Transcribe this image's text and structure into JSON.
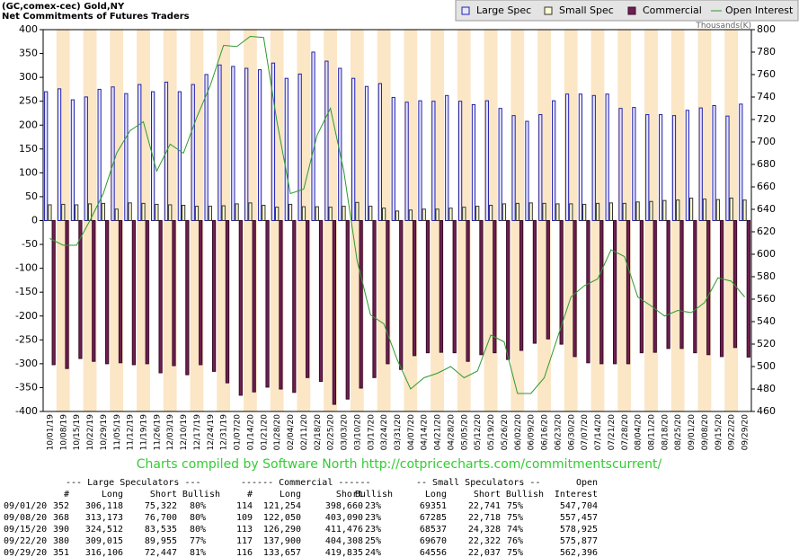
{
  "chart_data": {
    "type": "bar",
    "title": "(GC,comex-cec) Gold,NY",
    "subtitle": "Net Commitments of Futures Traders",
    "y2label": "Thousands(K)",
    "caption": "Charts compiled by Software North  http://cotpricecharts.com/commitmentscurrent/",
    "categories": [
      "10/01/19",
      "10/08/19",
      "10/15/19",
      "10/22/19",
      "10/29/19",
      "11/05/19",
      "11/12/19",
      "11/19/19",
      "11/26/19",
      "12/03/19",
      "12/10/19",
      "12/17/19",
      "12/24/19",
      "12/31/19",
      "01/07/20",
      "01/14/20",
      "01/21/20",
      "01/28/20",
      "02/04/20",
      "02/11/20",
      "02/18/20",
      "02/25/20",
      "03/03/20",
      "03/10/20",
      "03/17/20",
      "03/24/20",
      "03/31/20",
      "04/07/20",
      "04/14/20",
      "04/21/20",
      "04/28/20",
      "05/05/20",
      "05/12/20",
      "05/19/20",
      "05/26/20",
      "06/02/20",
      "06/09/20",
      "06/16/20",
      "06/23/20",
      "06/30/20",
      "07/07/20",
      "07/14/20",
      "07/21/20",
      "07/28/20",
      "08/04/20",
      "08/11/20",
      "08/18/20",
      "08/25/20",
      "09/01/20",
      "09/08/20",
      "09/15/20",
      "09/22/20",
      "09/29/20"
    ],
    "series": [
      {
        "name": "Large Spec",
        "color": "#e6e6ff",
        "edge_color": "#2222aa",
        "values": [
          270,
          276,
          253,
          259,
          275,
          280,
          266,
          285,
          270,
          290,
          270,
          285,
          306,
          326,
          323,
          319,
          316,
          330,
          298,
          307,
          353,
          334,
          319,
          298,
          281,
          287,
          258,
          248,
          251,
          250,
          262,
          250,
          243,
          251,
          235,
          220,
          208,
          222,
          251,
          265,
          265,
          262,
          265,
          235,
          237,
          222,
          222,
          220,
          231,
          236,
          241,
          219,
          244
        ]
      },
      {
        "name": "Small Spec",
        "color": "#ffffd0",
        "edge_color": "#333333",
        "values": [
          33,
          34,
          33,
          35,
          36,
          24,
          37,
          36,
          34,
          33,
          32,
          30,
          30,
          31,
          35,
          37,
          32,
          28,
          34,
          29,
          29,
          28,
          30,
          38,
          30,
          26,
          20,
          22,
          24,
          24,
          26,
          28,
          30,
          32,
          35,
          36,
          37,
          36,
          35,
          35,
          34,
          36,
          37,
          36,
          39,
          40,
          42,
          43,
          47,
          45,
          44,
          47,
          43
        ]
      },
      {
        "name": "Commercial",
        "color": "#6e2050",
        "edge_color": "#3a0a28",
        "values": [
          -302,
          -310,
          -289,
          -295,
          -300,
          -298,
          -302,
          -300,
          -319,
          -304,
          -323,
          -302,
          -316,
          -340,
          -366,
          -359,
          -349,
          -353,
          -360,
          -329,
          -337,
          -385,
          -374,
          -351,
          -329,
          -300,
          -312,
          -283,
          -277,
          -276,
          -277,
          -295,
          -281,
          -277,
          -291,
          -272,
          -257,
          -248,
          -259,
          -285,
          -298,
          -300,
          -300,
          -300,
          -277,
          -276,
          -268,
          -268,
          -277,
          -281,
          -285,
          -266,
          -286
        ]
      },
      {
        "name": "Open Interest",
        "color": "#2e9a2e",
        "type": "line",
        "axis": "y2",
        "values": [
          614,
          608,
          608,
          630,
          654,
          690,
          710,
          718,
          674,
          698,
          690,
          722,
          750,
          786,
          785,
          794,
          793,
          718,
          654,
          658,
          706,
          730,
          674,
          594,
          546,
          538,
          506,
          480,
          490,
          494,
          500,
          490,
          496,
          528,
          522,
          476,
          476,
          490,
          526,
          562,
          572,
          578,
          604,
          598,
          562,
          554,
          545,
          550,
          548,
          557,
          579,
          576,
          562
        ]
      }
    ],
    "ylim": [
      -400,
      400
    ],
    "yticks": [
      -400,
      -350,
      -300,
      -250,
      -200,
      -150,
      -100,
      -50,
      0,
      50,
      100,
      150,
      200,
      250,
      300,
      350,
      400
    ],
    "y2lim": [
      460,
      800
    ],
    "y2ticks": [
      460,
      480,
      500,
      520,
      540,
      560,
      580,
      600,
      620,
      640,
      660,
      680,
      700,
      720,
      740,
      760,
      780,
      800
    ],
    "band_colors": [
      "#ffffff",
      "#fbe6c6"
    ],
    "legend": "top-right"
  },
  "table": {
    "groups": [
      "--- Large Speculators ---",
      "------ Commercial ------",
      "-- Small Speculators --",
      "Open"
    ],
    "columns": [
      "#",
      "Long",
      "Short",
      "Bullish",
      "#",
      "Long",
      "Short",
      "Bullish",
      "Long",
      "Short",
      "Bullish",
      "Interest"
    ],
    "rows": [
      [
        "09/01/20",
        "352",
        "306,118",
        "75,322",
        "80%",
        "114",
        "121,254",
        "398,660",
        "23%",
        "69351",
        "22,741",
        "75%",
        "547,704"
      ],
      [
        "09/08/20",
        "368",
        "313,173",
        "76,700",
        "80%",
        "109",
        "122,050",
        "403,090",
        "23%",
        "67285",
        "22,718",
        "75%",
        "557,457"
      ],
      [
        "09/15/20",
        "390",
        "324,512",
        "83,535",
        "80%",
        "113",
        "126,290",
        "411,476",
        "23%",
        "68537",
        "24,328",
        "74%",
        "578,925"
      ],
      [
        "09/22/20",
        "380",
        "309,015",
        "89,955",
        "77%",
        "117",
        "137,900",
        "404,308",
        "25%",
        "69670",
        "22,322",
        "76%",
        "575,877"
      ],
      [
        "09/29/20",
        "351",
        "316,106",
        "72,447",
        "81%",
        "116",
        "133,657",
        "419,835",
        "24%",
        "64556",
        "22,037",
        "75%",
        "562,396"
      ]
    ]
  }
}
